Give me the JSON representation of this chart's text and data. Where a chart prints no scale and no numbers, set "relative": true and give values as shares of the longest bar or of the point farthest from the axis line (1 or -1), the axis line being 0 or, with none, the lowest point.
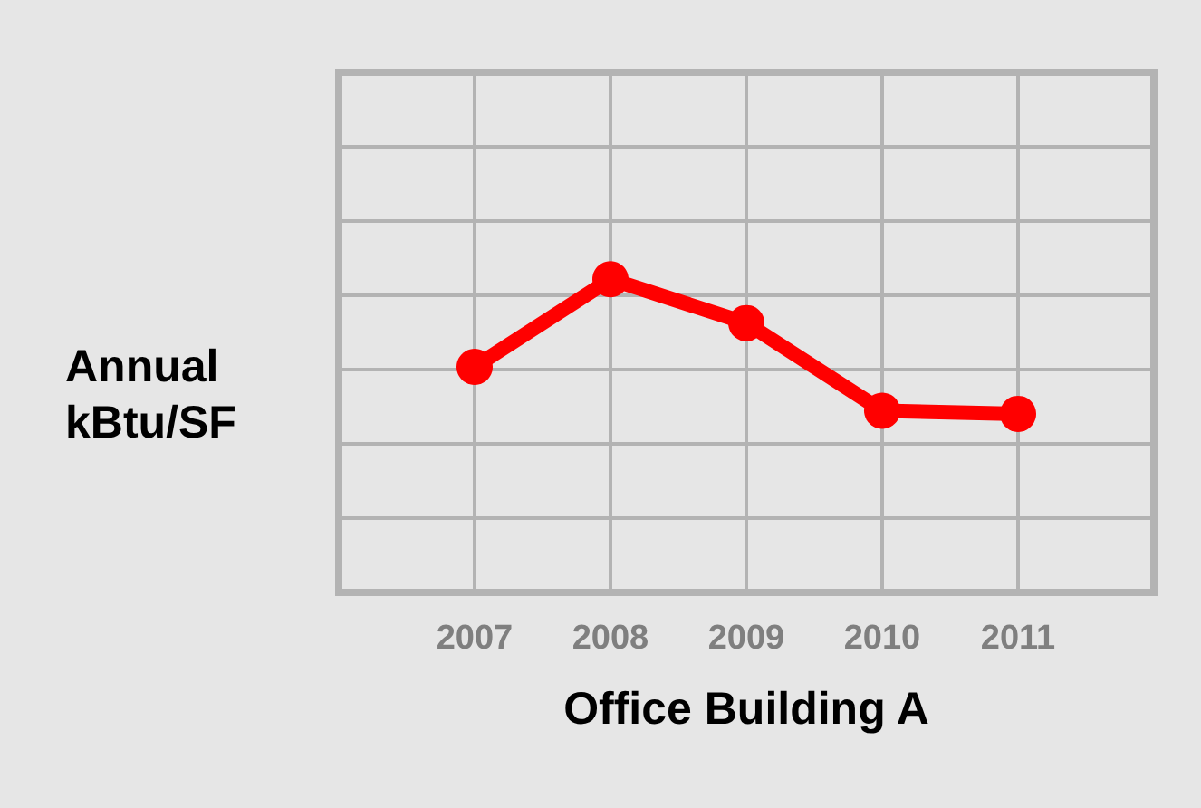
{
  "chart_data": {
    "type": "line",
    "xlabel": "Office Building A",
    "ylabel": "Annual\nkBtu/SF",
    "categories": [
      "2007",
      "2008",
      "2009",
      "2010",
      "2011"
    ],
    "series": [
      {
        "color": "#ff0000",
        "values": [
          0.72,
          1,
          0.86,
          0.58,
          0.57
        ]
      }
    ],
    "relative": true,
    "grid": true,
    "marker": "circle",
    "line_style": "solid"
  }
}
